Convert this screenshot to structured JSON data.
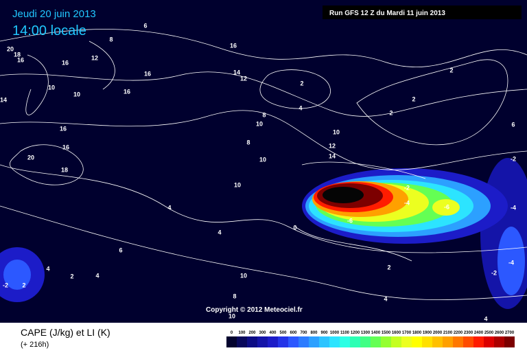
{
  "header": {
    "date": "Jeudi 20 juin 2013",
    "time": "14:00 locale",
    "run": "Run GFS 12 Z du Mardi 11 juin 2013"
  },
  "copyright": "Copyright © 2012 Meteociel.fr",
  "legend": {
    "title": "CAPE (J/kg) et LI (K)",
    "lead": "(+ 216h)",
    "levels": [
      0,
      100,
      200,
      300,
      400,
      500,
      600,
      700,
      800,
      900,
      1000,
      1100,
      1200,
      1300,
      1400,
      1500,
      1600,
      1700,
      1800,
      1900,
      2000,
      2100,
      2200,
      2300,
      2400,
      2500,
      2600,
      2700
    ],
    "colors": [
      "#03032e",
      "#08085a",
      "#0c0c84",
      "#1414a8",
      "#1c1cc8",
      "#2434e8",
      "#2c58ff",
      "#2c7cff",
      "#2ca0ff",
      "#2cc4ff",
      "#2ce4ff",
      "#2cffe4",
      "#2cffb4",
      "#40ff84",
      "#64ff54",
      "#94ff30",
      "#c4ff20",
      "#ecff20",
      "#ffff00",
      "#ffe000",
      "#ffc000",
      "#ffa000",
      "#ff7800",
      "#ff4c00",
      "#ff1c00",
      "#dc0000",
      "#ac0000",
      "#7c0000"
    ]
  },
  "contour_labels": [
    6,
    8,
    20,
    18,
    16,
    16,
    12,
    16,
    16,
    14,
    12,
    16,
    10,
    10,
    2,
    4,
    14,
    16,
    16,
    20,
    18,
    8,
    10,
    8,
    10,
    12,
    14,
    10,
    10,
    4,
    4,
    6,
    -2,
    -4,
    -6,
    -6,
    2,
    2,
    2,
    6,
    -2,
    -4,
    -4,
    -2,
    2,
    0,
    10,
    8,
    10,
    4,
    4,
    -2,
    2,
    4,
    2,
    4
  ]
}
